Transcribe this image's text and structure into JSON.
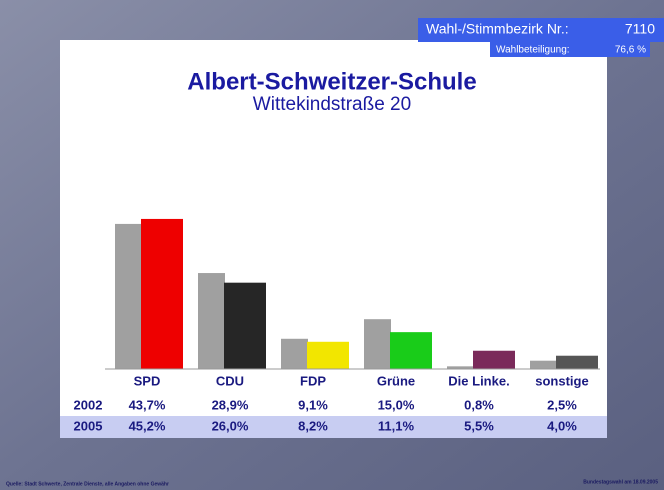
{
  "chart_data": {
    "type": "bar",
    "header": {
      "district_label": "Wahl-/Stimmbezirk Nr.:",
      "district": "7110",
      "turnout_label": "Wahlbeteiligung:",
      "turnout": "76,6 %"
    },
    "title": "Albert-Schweitzer-Schule",
    "subtitle": "Wittekindstraße 20",
    "categories": [
      "SPD",
      "CDU",
      "FDP",
      "Grüne",
      "Die Linke.",
      "sonstige"
    ],
    "series": [
      {
        "name": "2002",
        "color": "#a0a0a0",
        "values": [
          43.7,
          28.9,
          9.1,
          15.0,
          0.8,
          2.5
        ],
        "value_labels": [
          "43,7%",
          "28,9%",
          "9,1%",
          "15,0%",
          "0,8%",
          "2,5%"
        ]
      },
      {
        "name": "2005",
        "colors": [
          "#ee0000",
          "#262626",
          "#f2e600",
          "#19cc19",
          "#7a2a5a",
          "#555555"
        ],
        "values": [
          45.2,
          26.0,
          8.2,
          11.1,
          5.5,
          4.0
        ],
        "value_labels": [
          "45,2%",
          "26,0%",
          "8,2%",
          "11,1%",
          "5,5%",
          "4,0%"
        ]
      }
    ],
    "source": "Quelle: Stadt Schwerte, Zentrale Dienste, alle Angaben ohne Gewähr",
    "election": "Bundestagswahl am 18.09.2005"
  }
}
